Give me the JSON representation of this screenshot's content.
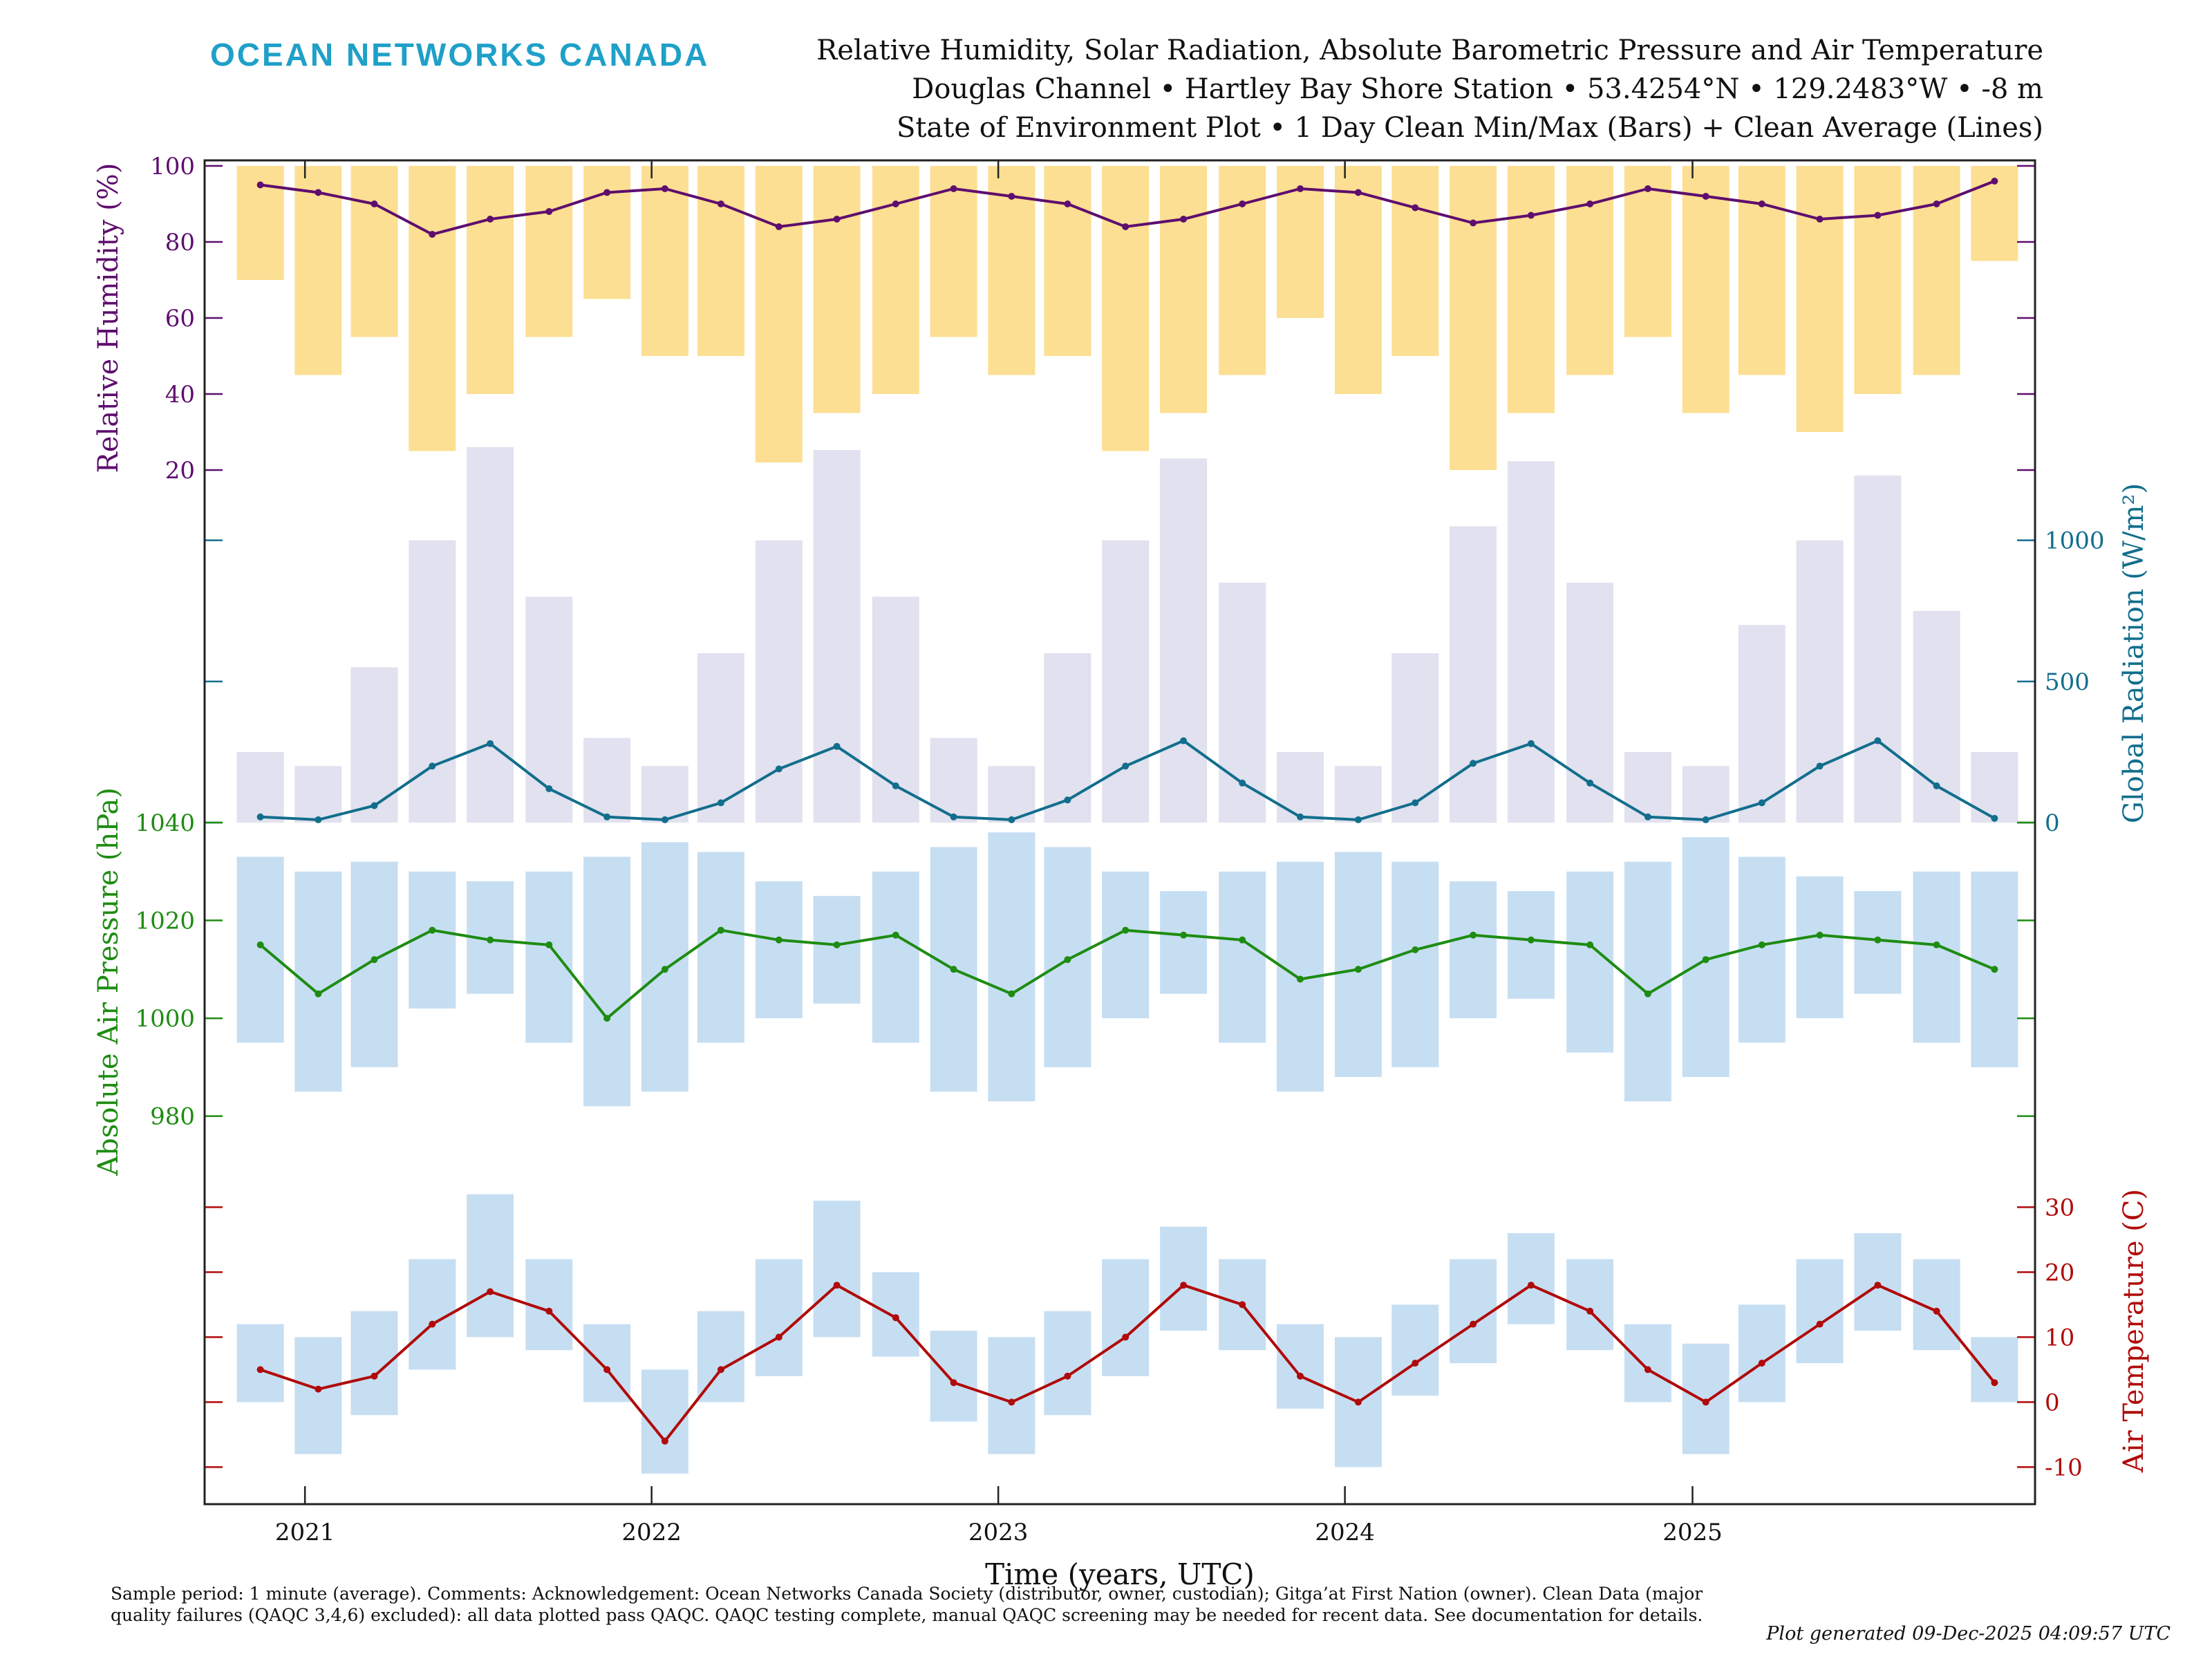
{
  "header": {
    "brand": "OCEAN NETWORKS CANADA",
    "title_line1": "Relative Humidity, Solar Radiation, Absolute Barometric Pressure and Air Temperature",
    "title_line2": "Douglas Channel • Hartley Bay Shore Station • 53.4254°N • 129.2483°W • -8 m",
    "title_line3": "State of Environment Plot • 1 Day Clean Min/Max (Bars) + Clean Average (Lines)"
  },
  "footer": {
    "note": "Sample period: 1 minute (average). Comments: Acknowledgement: Ocean Networks Canada Society (distributor, owner, custodian); Gitga’at First Nation (owner). Clean Data (major quality failures (QAQC 3,4,6) excluded): all data plotted pass QAQC. QAQC testing complete, manual QAQC screening may be needed for recent data. See documentation for details.",
    "generated": "Plot generated 09-Dec-2025 04:09:57 UTC"
  },
  "chart_data": {
    "type": "line",
    "xlabel": "Time (years, UTC)",
    "x_tick_labels": [
      "2021",
      "2022",
      "2023",
      "2024",
      "2025"
    ],
    "x_range": [
      "2020-10-15",
      "2025-11-30"
    ],
    "colors": {
      "humidity": "#5e0e6e",
      "humidity_bars": "#fcd97f",
      "radiation": "#126e8c",
      "radiation_bars": "#dcdcec",
      "pressure": "#1e8c12",
      "pressure_bars": "#bcd8f0",
      "temperature": "#b00a0a",
      "temperature_bars": "#bcd8f0"
    },
    "panels": [
      {
        "name": "humidity",
        "ylabel": "Relative Humidity (%)",
        "axis_side": "left",
        "ylim": [
          20,
          100
        ],
        "yticks": [
          "20",
          "40",
          "60",
          "80",
          "100"
        ],
        "series": [
          {
            "kind": "avg_line",
            "x": [
              "2020-11",
              "2021-01",
              "2021-03",
              "2021-05",
              "2021-07",
              "2021-09",
              "2021-11",
              "2022-01",
              "2022-03",
              "2022-05",
              "2022-07",
              "2022-09",
              "2022-11",
              "2023-01",
              "2023-03",
              "2023-05",
              "2023-07",
              "2023-09",
              "2023-11",
              "2024-01",
              "2024-03",
              "2024-05",
              "2024-07",
              "2024-09",
              "2024-11",
              "2025-01",
              "2025-03",
              "2025-05",
              "2025-07",
              "2025-09",
              "2025-11"
            ],
            "values": [
              95,
              93,
              90,
              82,
              86,
              88,
              93,
              94,
              90,
              84,
              86,
              90,
              94,
              92,
              90,
              84,
              86,
              90,
              94,
              93,
              89,
              85,
              87,
              90,
              94,
              92,
              90,
              86,
              87,
              90,
              96
            ]
          },
          {
            "kind": "minmax_bars",
            "min_values": [
              70,
              45,
              55,
              25,
              40,
              55,
              65,
              50,
              50,
              22,
              35,
              40,
              55,
              45,
              50,
              25,
              35,
              45,
              60,
              40,
              50,
              20,
              35,
              45,
              55,
              35,
              45,
              30,
              40,
              45,
              75
            ],
            "max_values": [
              100,
              100,
              100,
              100,
              100,
              100,
              100,
              100,
              100,
              100,
              100,
              100,
              100,
              100,
              100,
              100,
              100,
              100,
              100,
              100,
              100,
              100,
              100,
              100,
              100,
              100,
              100,
              100,
              100,
              100,
              100
            ]
          }
        ]
      },
      {
        "name": "radiation",
        "ylabel": "Global Radiation (W/m²)",
        "axis_side": "right",
        "ylim": [
          0,
          1200
        ],
        "yticks": [
          "0",
          "500",
          "1000"
        ],
        "series": [
          {
            "kind": "avg_line",
            "x": [
              "2020-11",
              "2021-01",
              "2021-03",
              "2021-05",
              "2021-07",
              "2021-09",
              "2021-11",
              "2022-01",
              "2022-03",
              "2022-05",
              "2022-07",
              "2022-09",
              "2022-11",
              "2023-01",
              "2023-03",
              "2023-05",
              "2023-07",
              "2023-09",
              "2023-11",
              "2024-01",
              "2024-03",
              "2024-05",
              "2024-07",
              "2024-09",
              "2024-11",
              "2025-01",
              "2025-03",
              "2025-05",
              "2025-07",
              "2025-09",
              "2025-11"
            ],
            "values": [
              20,
              10,
              60,
              200,
              280,
              120,
              20,
              10,
              70,
              190,
              270,
              130,
              20,
              10,
              80,
              200,
              290,
              140,
              20,
              10,
              70,
              210,
              280,
              140,
              20,
              10,
              70,
              200,
              290,
              130,
              15
            ]
          },
          {
            "kind": "minmax_bars",
            "min_values": [
              0,
              0,
              0,
              0,
              0,
              0,
              0,
              0,
              0,
              0,
              0,
              0,
              0,
              0,
              0,
              0,
              0,
              0,
              0,
              0,
              0,
              0,
              0,
              0,
              0,
              0,
              0,
              0,
              0,
              0,
              0
            ],
            "max_values": [
              250,
              200,
              550,
              1000,
              1330,
              800,
              300,
              200,
              600,
              1000,
              1320,
              800,
              300,
              200,
              600,
              1000,
              1290,
              850,
              250,
              200,
              600,
              1050,
              1280,
              850,
              250,
              200,
              700,
              1000,
              1230,
              750,
              250
            ]
          }
        ]
      },
      {
        "name": "pressure",
        "ylabel": "Absolute Air Pressure (hPa)",
        "axis_side": "left",
        "ylim": [
          975,
          1040
        ],
        "yticks": [
          "980",
          "1000",
          "1020",
          "1040"
        ],
        "series": [
          {
            "kind": "avg_line",
            "x": [
              "2020-11",
              "2021-01",
              "2021-03",
              "2021-05",
              "2021-07",
              "2021-09",
              "2021-11",
              "2022-01",
              "2022-03",
              "2022-05",
              "2022-07",
              "2022-09",
              "2022-11",
              "2023-01",
              "2023-03",
              "2023-05",
              "2023-07",
              "2023-09",
              "2023-11",
              "2024-01",
              "2024-03",
              "2024-05",
              "2024-07",
              "2024-09",
              "2024-11",
              "2025-01",
              "2025-03",
              "2025-05",
              "2025-07",
              "2025-09",
              "2025-11"
            ],
            "values": [
              1015,
              1005,
              1012,
              1018,
              1016,
              1015,
              1000,
              1010,
              1018,
              1016,
              1015,
              1017,
              1010,
              1005,
              1012,
              1018,
              1017,
              1016,
              1008,
              1010,
              1014,
              1017,
              1016,
              1015,
              1005,
              1012,
              1015,
              1017,
              1016,
              1015,
              1010
            ]
          },
          {
            "kind": "minmax_bars",
            "min_values": [
              995,
              985,
              990,
              1002,
              1005,
              995,
              982,
              985,
              995,
              1000,
              1003,
              995,
              985,
              983,
              990,
              1000,
              1005,
              995,
              985,
              988,
              990,
              1000,
              1004,
              993,
              983,
              988,
              995,
              1000,
              1005,
              995,
              990
            ],
            "max_values": [
              1033,
              1030,
              1032,
              1030,
              1028,
              1030,
              1033,
              1036,
              1034,
              1028,
              1025,
              1030,
              1035,
              1038,
              1035,
              1030,
              1026,
              1030,
              1032,
              1034,
              1032,
              1028,
              1026,
              1030,
              1032,
              1037,
              1033,
              1029,
              1026,
              1030,
              1030
            ]
          }
        ]
      },
      {
        "name": "temperature",
        "ylabel": "Air Temperature (C)",
        "axis_side": "right",
        "ylim": [
          -14,
          36
        ],
        "yticks": [
          "-10",
          "0",
          "10",
          "20",
          "30"
        ],
        "series": [
          {
            "kind": "avg_line",
            "x": [
              "2020-11",
              "2021-01",
              "2021-03",
              "2021-05",
              "2021-07",
              "2021-09",
              "2021-11",
              "2022-01",
              "2022-03",
              "2022-05",
              "2022-07",
              "2022-09",
              "2022-11",
              "2023-01",
              "2023-03",
              "2023-05",
              "2023-07",
              "2023-09",
              "2023-11",
              "2024-01",
              "2024-03",
              "2024-05",
              "2024-07",
              "2024-09",
              "2024-11",
              "2025-01",
              "2025-03",
              "2025-05",
              "2025-07",
              "2025-09",
              "2025-11"
            ],
            "values": [
              5,
              2,
              4,
              12,
              17,
              14,
              5,
              -6,
              5,
              10,
              18,
              13,
              3,
              0,
              4,
              10,
              18,
              15,
              4,
              0,
              6,
              12,
              18,
              14,
              5,
              0,
              6,
              12,
              18,
              14,
              3
            ]
          },
          {
            "kind": "minmax_bars",
            "min_values": [
              0,
              -8,
              -2,
              5,
              10,
              8,
              0,
              -11,
              0,
              4,
              10,
              7,
              -3,
              -8,
              -2,
              4,
              11,
              8,
              -1,
              -10,
              1,
              6,
              12,
              8,
              0,
              -8,
              0,
              6,
              11,
              8,
              0
            ],
            "max_values": [
              12,
              10,
              14,
              22,
              32,
              22,
              12,
              5,
              14,
              22,
              31,
              20,
              11,
              10,
              14,
              22,
              27,
              22,
              12,
              10,
              15,
              22,
              26,
              22,
              12,
              9,
              15,
              22,
              26,
              22,
              10
            ]
          }
        ]
      }
    ]
  }
}
